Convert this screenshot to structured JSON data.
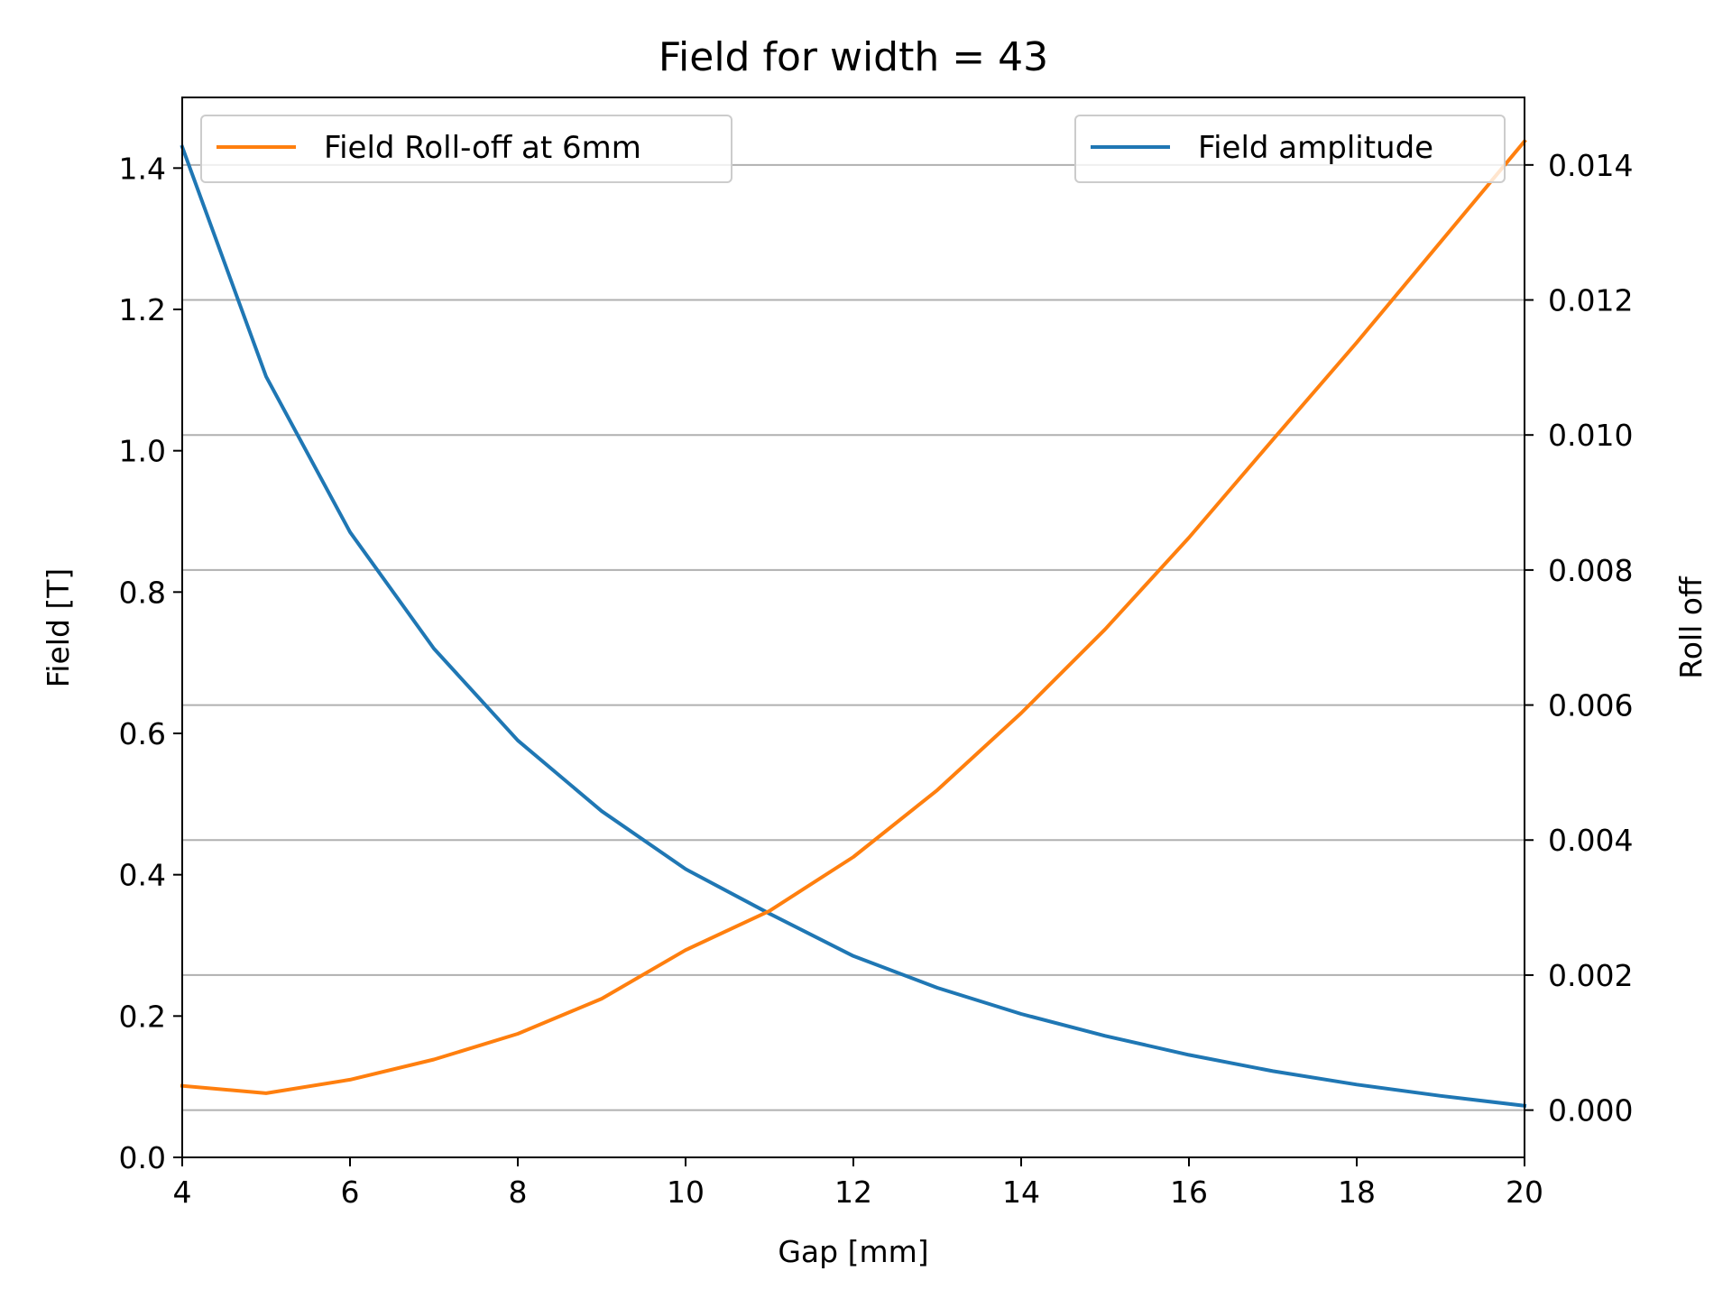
{
  "chart_data": {
    "type": "line",
    "title": "Field for width = 43",
    "xlabel": "Gap [mm]",
    "ylabel": "Field [T]",
    "ylabel_right": "Roll off",
    "xlim": [
      4,
      20
    ],
    "ylim": [
      0,
      1.5
    ],
    "ylim_right": [
      -0.0007,
      0.015
    ],
    "x_ticks": [
      4,
      6,
      8,
      10,
      12,
      14,
      16,
      18,
      20
    ],
    "y_ticks": [
      0.0,
      0.2,
      0.4,
      0.6,
      0.8,
      1.0,
      1.2,
      1.4
    ],
    "y_right_ticks": [
      0.0,
      0.002,
      0.004,
      0.006,
      0.008,
      0.01,
      0.012,
      0.014
    ],
    "x_tick_labels": [
      "4",
      "6",
      "8",
      "10",
      "12",
      "14",
      "16",
      "18",
      "20"
    ],
    "y_tick_labels": [
      "0.0",
      "0.2",
      "0.4",
      "0.6",
      "0.8",
      "1.0",
      "1.2",
      "1.4"
    ],
    "y_right_tick_labels": [
      "0.000",
      "0.002",
      "0.004",
      "0.006",
      "0.008",
      "0.010",
      "0.012",
      "0.014"
    ],
    "grid": "horizontal lines at right-axis ticks",
    "x": [
      4,
      5,
      6,
      7,
      8,
      9,
      10,
      11,
      12,
      13,
      14,
      15,
      16,
      17,
      18,
      19,
      20
    ],
    "series": [
      {
        "name": "Field amplitude",
        "axis": "left",
        "color": "#1f77b4",
        "legend": "top-right",
        "values": [
          1.43,
          1.105,
          0.885,
          0.72,
          0.59,
          0.49,
          0.408,
          0.345,
          0.285,
          0.24,
          0.203,
          0.172,
          0.145,
          0.122,
          0.103,
          0.087,
          0.073
        ]
      },
      {
        "name": "Field Roll-off at 6mm",
        "axis": "right",
        "color": "#ff7f0e",
        "legend": "top-left",
        "values": [
          0.00036,
          0.00025,
          0.00045,
          0.00075,
          0.00113,
          0.00165,
          0.00237,
          0.00295,
          0.00375,
          0.00474,
          0.00588,
          0.00712,
          0.00848,
          0.00993,
          0.01137,
          0.01286,
          0.01435
        ]
      }
    ]
  }
}
